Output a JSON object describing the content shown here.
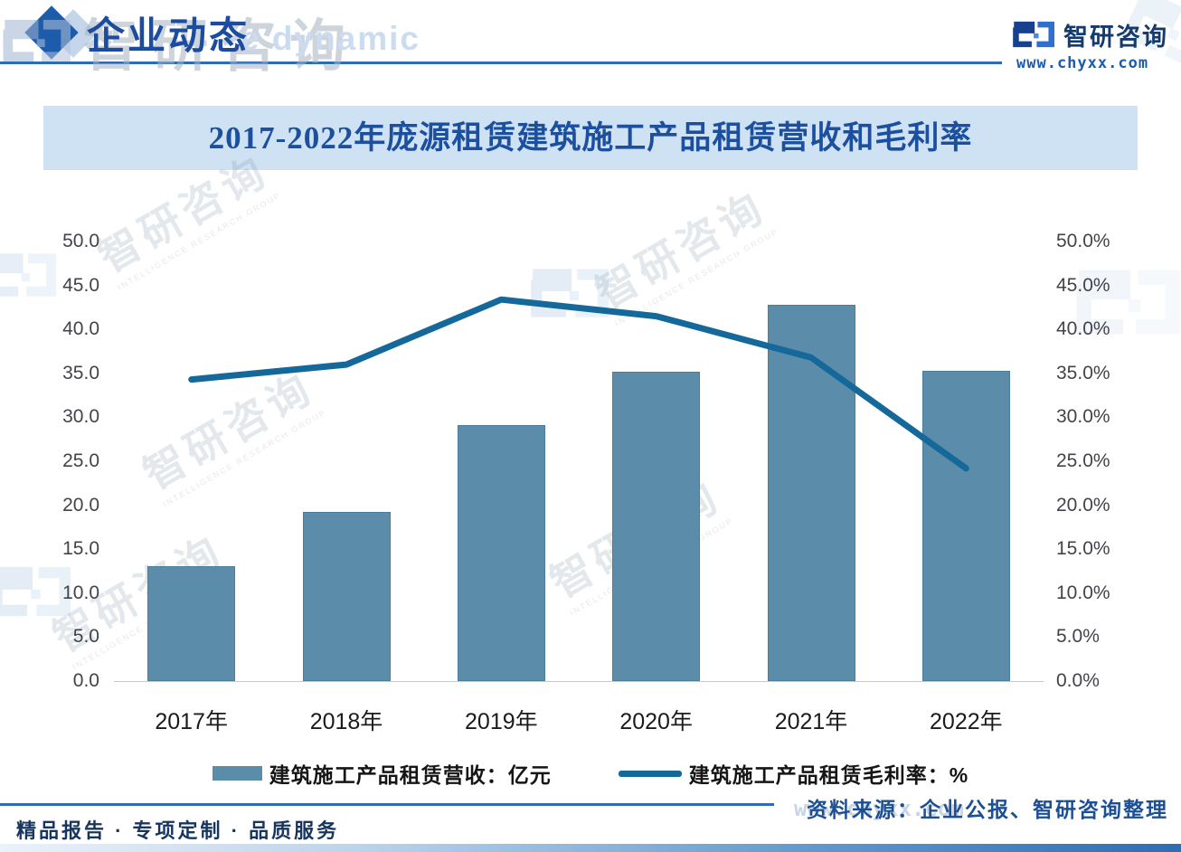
{
  "header": {
    "title": "企业动态",
    "title_watermark": "e dynamic",
    "brand_name": "智研咨询",
    "brand_url": "www.chyxx.com"
  },
  "chart_data": {
    "type": "bar",
    "subtype": "bar-line-combo",
    "title": "2017-2022年庞源租赁建筑施工产品租赁营收和毛利率",
    "categories": [
      "2017年",
      "2018年",
      "2019年",
      "2020年",
      "2021年",
      "2022年"
    ],
    "series": [
      {
        "name": "建筑施工产品租赁营收：亿元",
        "type": "bar",
        "axis": "left",
        "values": [
          13.1,
          19.2,
          29.1,
          35.2,
          42.8,
          35.3
        ]
      },
      {
        "name": "建筑施工产品租赁毛利率：%",
        "type": "line",
        "axis": "right",
        "values": [
          34.3,
          36.0,
          43.4,
          41.5,
          36.8,
          24.2
        ]
      }
    ],
    "left_axis": {
      "min": 0,
      "max": 50,
      "step": 5,
      "suffix": ""
    },
    "right_axis": {
      "min": 0,
      "max": 50,
      "step": 5,
      "suffix": "%"
    },
    "grid": false,
    "legend_position": "bottom"
  },
  "source_note": "资料来源：企业公报、智研咨询整理",
  "source_watermark": "www.chyxx.com",
  "footer": {
    "tagline": "精品报告 · 专项定制 · 品质服务"
  },
  "watermark": {
    "brand": "智研咨询",
    "sub": "INTELLIGENCE RESEARCH GROUP"
  },
  "colors": {
    "bar_fill": "#5b8dab",
    "bar_border": "#4a7e9c",
    "line": "#15689a",
    "banner_bg": "#cfe2f4",
    "title_text": "#1c4f9e",
    "accent_rule": "#2d6db5",
    "logo_dark": "#17418f",
    "logo_light": "#2e6fd0"
  }
}
